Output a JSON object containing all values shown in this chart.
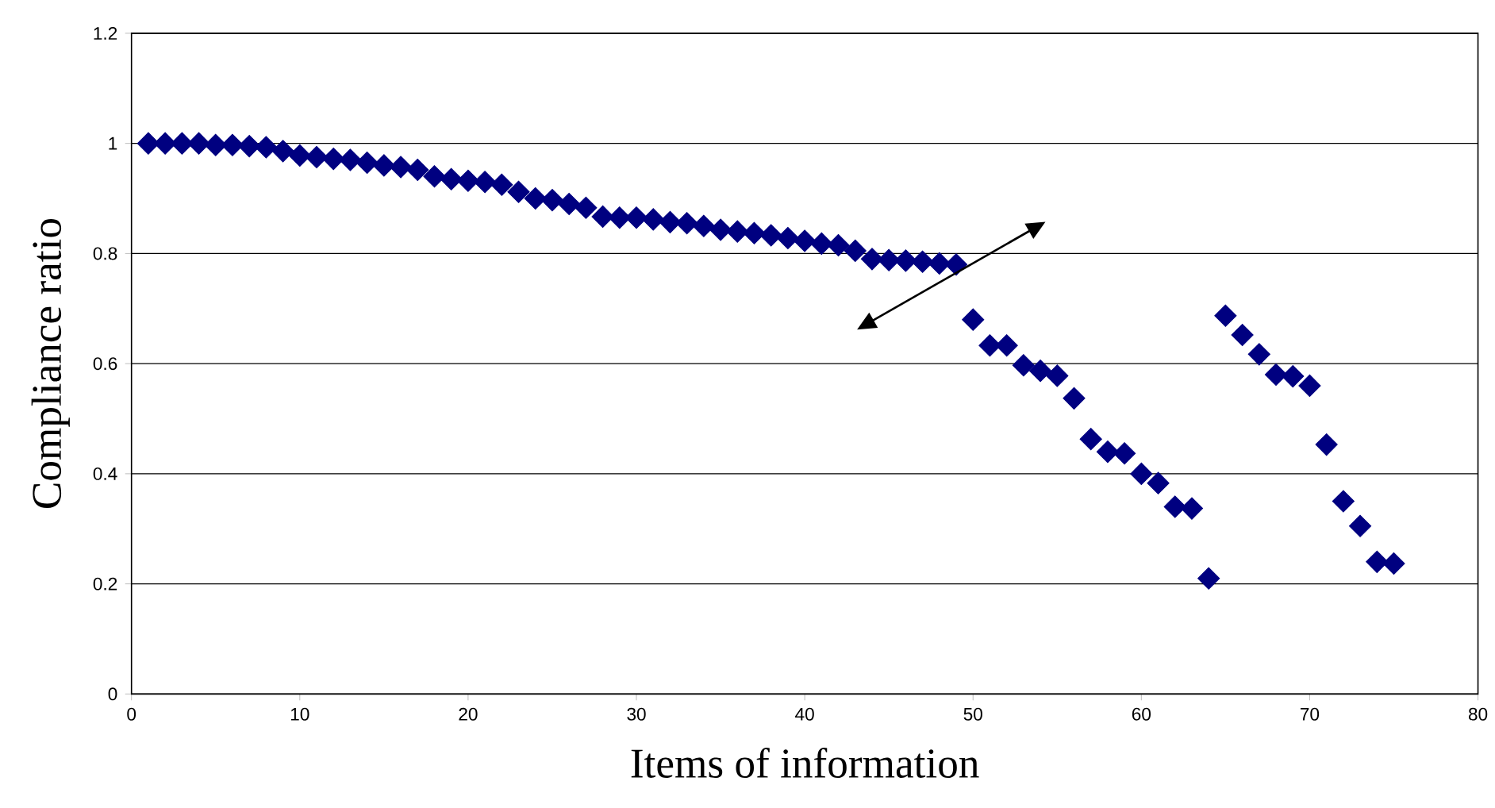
{
  "chart_data": {
    "type": "scatter",
    "xlabel": "Items of information",
    "ylabel": "Compliance ratio",
    "x": [
      1,
      2,
      3,
      4,
      5,
      6,
      7,
      8,
      9,
      10,
      11,
      12,
      13,
      14,
      15,
      16,
      17,
      18,
      19,
      20,
      21,
      22,
      23,
      24,
      25,
      26,
      27,
      28,
      29,
      30,
      31,
      32,
      33,
      34,
      35,
      36,
      37,
      38,
      39,
      40,
      41,
      42,
      43,
      44,
      45,
      46,
      47,
      48,
      49,
      50,
      51,
      52,
      53,
      54,
      55,
      56,
      57,
      58,
      59,
      60,
      61,
      62,
      63,
      64,
      65,
      66,
      67,
      68,
      69,
      70,
      71,
      72,
      73,
      74,
      75
    ],
    "values": [
      1.0,
      1.0,
      1.0,
      1.0,
      0.997,
      0.997,
      0.995,
      0.993,
      0.986,
      0.978,
      0.975,
      0.972,
      0.97,
      0.965,
      0.96,
      0.957,
      0.952,
      0.94,
      0.935,
      0.932,
      0.93,
      0.925,
      0.912,
      0.9,
      0.897,
      0.89,
      0.883,
      0.867,
      0.865,
      0.865,
      0.862,
      0.857,
      0.855,
      0.85,
      0.843,
      0.84,
      0.837,
      0.833,
      0.828,
      0.823,
      0.818,
      0.815,
      0.805,
      0.79,
      0.788,
      0.787,
      0.785,
      0.782,
      0.78,
      0.68,
      0.633,
      0.633,
      0.597,
      0.587,
      0.578,
      0.537,
      0.463,
      0.44,
      0.437,
      0.4,
      0.383,
      0.34,
      0.337,
      0.21,
      0.687,
      0.652,
      0.617,
      0.58,
      0.577,
      0.56,
      0.453,
      0.35,
      0.305,
      0.24,
      0.237
    ],
    "color": "#000080",
    "marker": "diamond",
    "xlim": [
      0,
      80
    ],
    "ylim": [
      0,
      1.2
    ],
    "xticks": [
      0,
      10,
      20,
      30,
      40,
      50,
      60,
      70,
      80
    ],
    "yticks": [
      0,
      0.2,
      0.4,
      0.6,
      0.8,
      1,
      1.2
    ],
    "grid": "y"
  }
}
